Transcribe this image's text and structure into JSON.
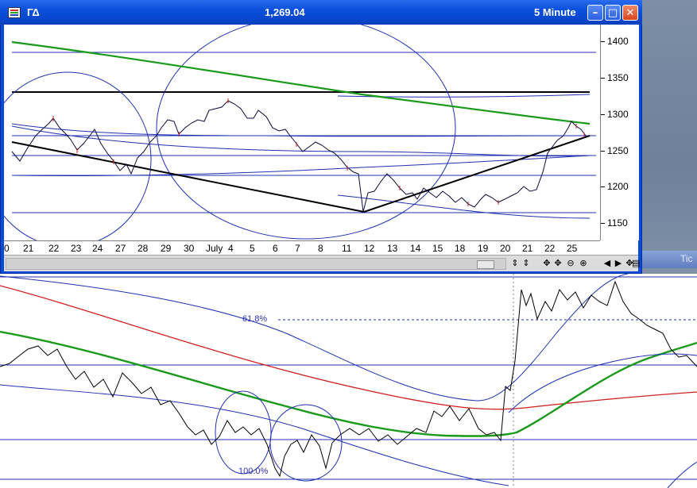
{
  "window": {
    "symbol": "ΓΔ",
    "last_price": "1,269.04",
    "interval": "5 Minute",
    "minimize_glyph": "–",
    "maximize_glyph": "□",
    "close_glyph": "✕"
  },
  "price_axis": {
    "ticks": [
      "1400",
      "1350",
      "1300",
      "1250",
      "1200",
      "1150"
    ]
  },
  "date_axis": {
    "ticks": [
      "0",
      "21",
      "22",
      "23",
      "24",
      "27",
      "28",
      "29",
      "30",
      "July",
      "4",
      "5",
      "6",
      "7",
      "8",
      "11",
      "12",
      "13",
      "14",
      "15",
      "18",
      "19",
      "20",
      "21",
      "22",
      "25"
    ]
  },
  "scroll_controls": {
    "buttons": [
      "⇕",
      "⇕",
      "✥",
      "✥",
      "⊖",
      "⊕",
      "◀",
      "▶",
      "✥",
      "▤"
    ]
  },
  "background_chart": {
    "fib_levels": [
      "61.8%",
      "100.0%"
    ]
  },
  "background_window": {
    "tab_label": "Tic"
  },
  "colors": {
    "titlebar": "#0a50dc",
    "green_ma": "#1a9a1a",
    "blue_lines": "#2030b0",
    "red_ma": "#d02020",
    "trendline": "#000000"
  }
}
